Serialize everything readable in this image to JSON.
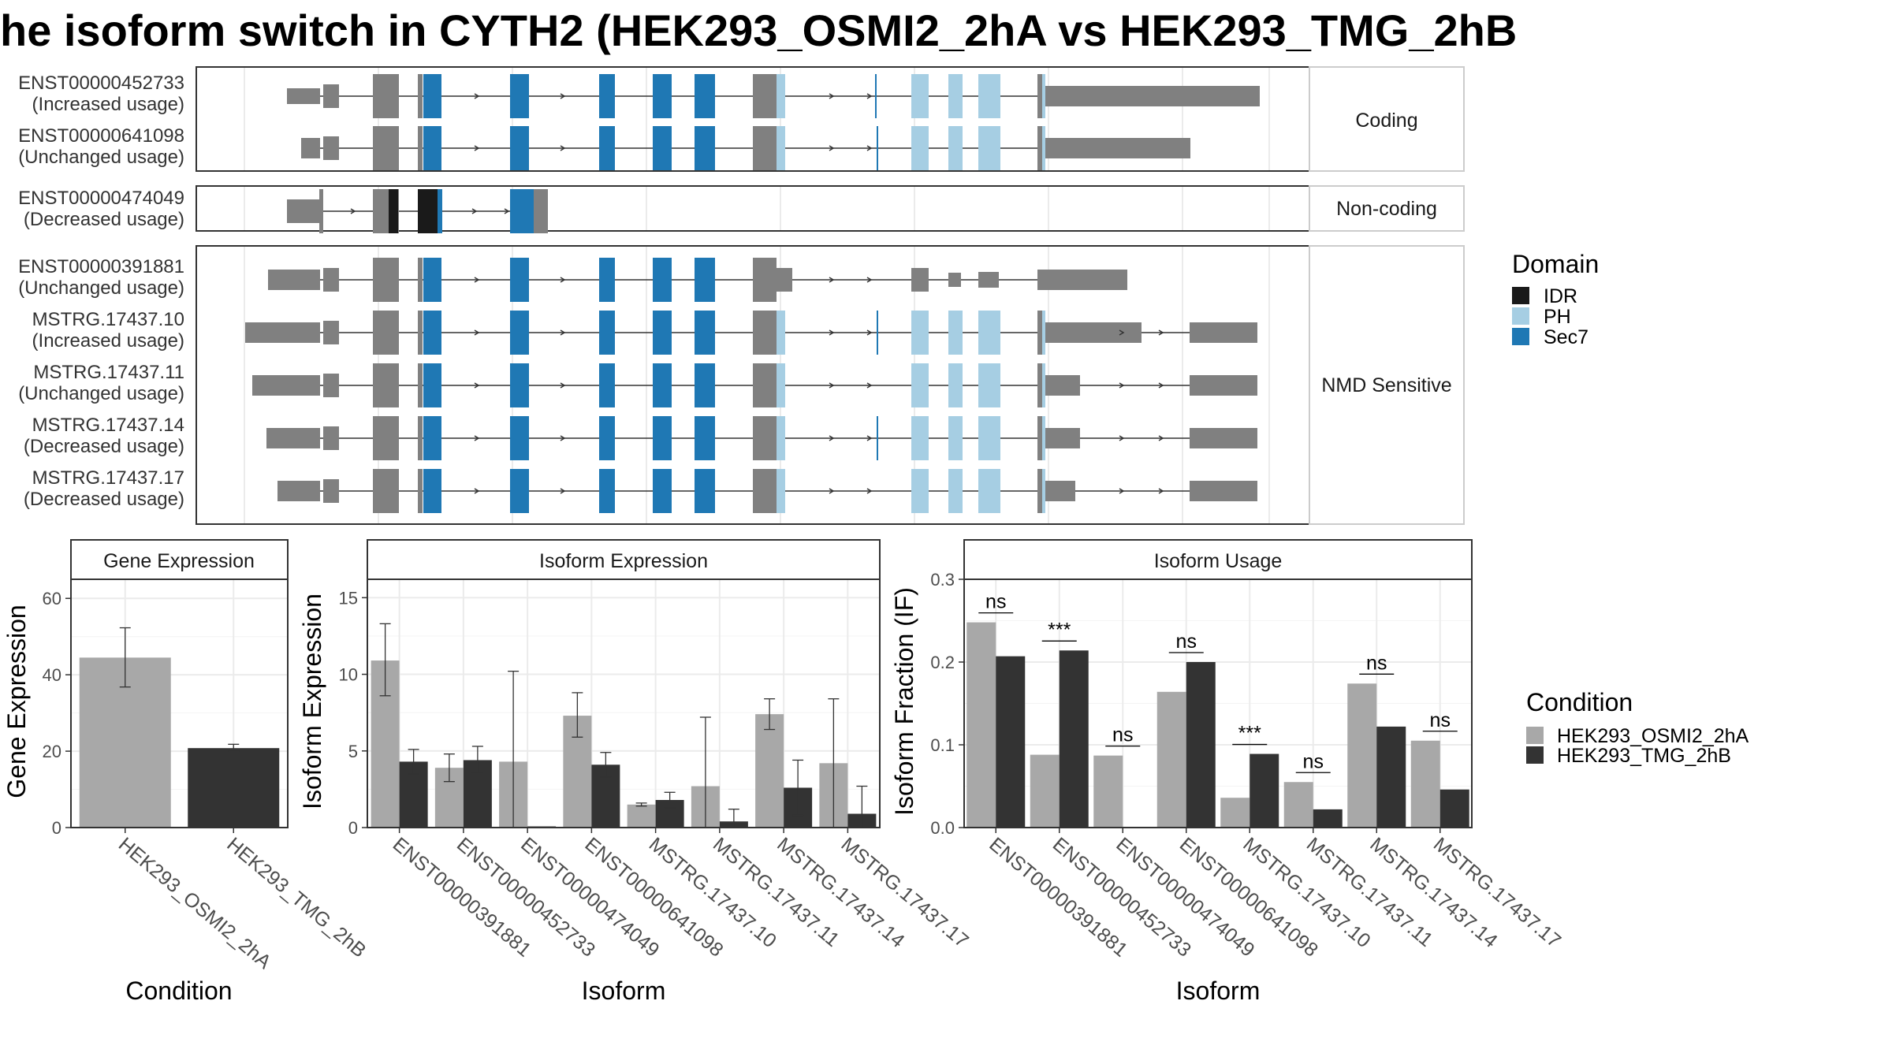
{
  "title": "he isoform switch in CYTH2 (HEK293_OSMI2_2hA vs HEK293_TMG_2hB",
  "colors": {
    "exon": "#808080",
    "IDR": "#1a1a1a",
    "PH": "#a6cee3",
    "Sec7": "#1f78b4",
    "HEK293_OSMI2_2hA": "#a8a8a8",
    "HEK293_TMG_2hB": "#333333",
    "panel_border": "#333333",
    "grid": "#ebebeb"
  },
  "structure": {
    "groups": [
      {
        "label": "Coding",
        "isoforms": [
          {
            "id": "ENST00000452733",
            "usage": "(Increased usage)"
          },
          {
            "id": "ENST00000641098",
            "usage": "(Unchanged usage)"
          }
        ]
      },
      {
        "label": "Non-coding",
        "isoforms": [
          {
            "id": "ENST00000474049",
            "usage": "(Decreased usage)"
          }
        ]
      },
      {
        "label": "NMD Sensitive",
        "isoforms": [
          {
            "id": "ENST00000391881",
            "usage": "(Unchanged usage)"
          },
          {
            "id": "MSTRG.17437.10",
            "usage": "(Increased usage)"
          },
          {
            "id": "MSTRG.17437.11",
            "usage": "(Unchanged usage)"
          },
          {
            "id": "MSTRG.17437.14",
            "usage": "(Decreased usage)"
          },
          {
            "id": "MSTRG.17437.17",
            "usage": "(Decreased usage)"
          }
        ]
      }
    ],
    "domain_legend": {
      "title": "Domain",
      "items": [
        "IDR",
        "PH",
        "Sec7"
      ]
    }
  },
  "chart_data": [
    {
      "type": "bar",
      "title": "Gene Expression",
      "xlabel": "Condition",
      "ylabel": "Gene Expression",
      "categories": [
        "HEK293_OSMI2_2hA",
        "HEK293_TMG_2hB"
      ],
      "values": [
        44.5,
        20.8
      ],
      "errors": [
        [
          36.8,
          52.3
        ],
        [
          20.0,
          21.8
        ]
      ],
      "ylim": [
        0,
        65
      ],
      "yticks": [
        0,
        20,
        40,
        60
      ],
      "grid": true
    },
    {
      "type": "bar",
      "title": "Isoform Expression",
      "xlabel": "Isoform",
      "ylabel": "Isoform Expression",
      "categories": [
        "ENST00000391881",
        "ENST00000452733",
        "ENST00000474049",
        "ENST00000641098",
        "MSTRG.17437.10",
        "MSTRG.17437.11",
        "MSTRG.17437.14",
        "MSTRG.17437.17"
      ],
      "series": [
        {
          "name": "HEK293_OSMI2_2hA",
          "values": [
            10.9,
            3.9,
            4.3,
            7.3,
            1.5,
            2.7,
            7.4,
            4.2
          ],
          "errors": [
            [
              8.6,
              13.3
            ],
            [
              3.0,
              4.8
            ],
            [
              0,
              10.2
            ],
            [
              5.9,
              8.8
            ],
            [
              1.4,
              1.6
            ],
            [
              0,
              7.2
            ],
            [
              6.4,
              8.4
            ],
            [
              0,
              8.4
            ]
          ]
        },
        {
          "name": "HEK293_TMG_2hB",
          "values": [
            4.3,
            4.4,
            0.0,
            4.1,
            1.8,
            0.4,
            2.6,
            0.9
          ],
          "errors": [
            [
              3.5,
              5.1
            ],
            [
              3.6,
              5.3
            ],
            [
              0,
              0
            ],
            [
              3.3,
              4.9
            ],
            [
              1.3,
              2.3
            ],
            [
              0,
              1.2
            ],
            [
              0.8,
              4.4
            ],
            [
              0,
              2.7
            ]
          ]
        }
      ],
      "ylim": [
        0,
        16.2
      ],
      "yticks": [
        0,
        5,
        10,
        15
      ],
      "grid": true
    },
    {
      "type": "bar",
      "title": "Isoform Usage",
      "xlabel": "Isoform",
      "ylabel": "Isoform Fraction (IF)",
      "categories": [
        "ENST00000391881",
        "ENST00000452733",
        "ENST00000474049",
        "ENST00000641098",
        "MSTRG.17437.10",
        "MSTRG.17437.11",
        "MSTRG.17437.14",
        "MSTRG.17437.17"
      ],
      "series": [
        {
          "name": "HEK293_OSMI2_2hA",
          "values": [
            0.248,
            0.088,
            0.087,
            0.164,
            0.036,
            0.055,
            0.174,
            0.105
          ]
        },
        {
          "name": "HEK293_TMG_2hB",
          "values": [
            0.207,
            0.214,
            0.0,
            0.2,
            0.089,
            0.022,
            0.122,
            0.046
          ]
        }
      ],
      "significance": [
        "ns",
        "***",
        "ns",
        "ns",
        "***",
        "ns",
        "ns",
        "ns"
      ],
      "ylim": [
        0,
        0.3
      ],
      "yticks": [
        "0.0",
        "0.1",
        "0.2",
        "0.3"
      ],
      "grid": true
    }
  ],
  "condition_legend": {
    "title": "Condition",
    "items": [
      "HEK293_OSMI2_2hA",
      "HEK293_TMG_2hB"
    ]
  }
}
